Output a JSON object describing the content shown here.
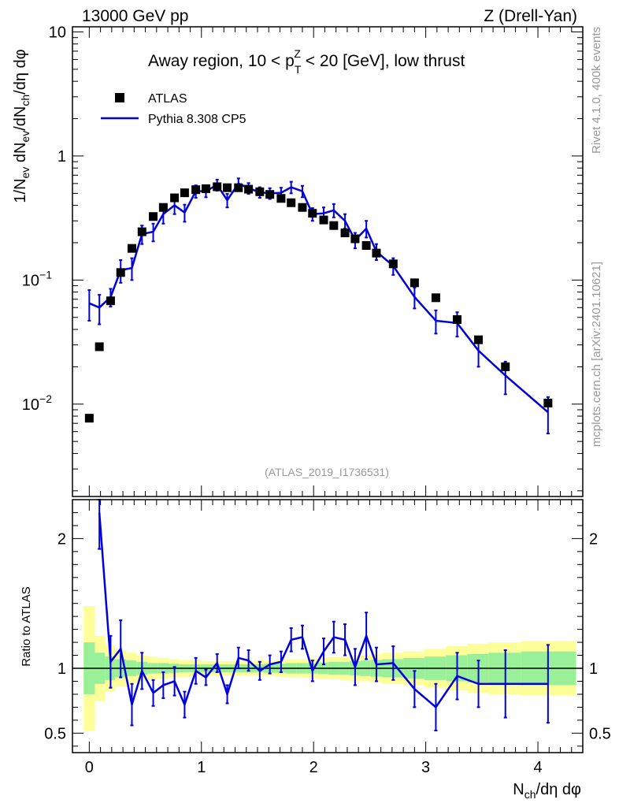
{
  "header": {
    "left": "13000 GeV pp",
    "right": "Z (Drell-Yan)"
  },
  "side_text": {
    "top": "Rivet 4.1.0,  400k events",
    "bottom": "mcplots.cern.ch [arXiv:2401.10621]"
  },
  "analysis_id": "(ATLAS_2019_I1736531)",
  "colors": {
    "data": "#000000",
    "mc": "#0000dd",
    "band_inner": "#99f099",
    "band_outer": "#ffff99",
    "frame": "#000000"
  },
  "chart_data": [
    {
      "type": "scatter",
      "panel": "main",
      "title": "Away region, 10 < p_T^Z < 20 [GeV], low thrust",
      "ylabel": "1/N_ev dN_ev/dN_ch/dη dφ",
      "yscale": "log",
      "ylim": [
        0.0018,
        11
      ],
      "xlim": [
        -0.15,
        4.4
      ],
      "yticks": [
        {
          "v": 0.01,
          "t": "10",
          "e": "−2"
        },
        {
          "v": 0.1,
          "t": "10",
          "e": "−1"
        },
        {
          "v": 1,
          "t": "1",
          "e": ""
        },
        {
          "v": 10,
          "t": "10",
          "e": ""
        }
      ],
      "legend": {
        "position": "top-left",
        "entries": [
          "ATLAS",
          "Pythia 8.308 CP5"
        ]
      },
      "series": [
        {
          "name": "ATLAS",
          "x": [
            0.0,
            0.09,
            0.19,
            0.28,
            0.38,
            0.47,
            0.57,
            0.66,
            0.76,
            0.85,
            0.95,
            1.04,
            1.14,
            1.23,
            1.33,
            1.42,
            1.52,
            1.61,
            1.71,
            1.8,
            1.9,
            1.99,
            2.09,
            2.18,
            2.28,
            2.37,
            2.47,
            2.56,
            2.71,
            2.9,
            3.09,
            3.28,
            3.47,
            3.71,
            4.09
          ],
          "y": [
            0.0077,
            0.029,
            0.068,
            0.115,
            0.18,
            0.245,
            0.325,
            0.385,
            0.46,
            0.505,
            0.535,
            0.545,
            0.565,
            0.555,
            0.555,
            0.54,
            0.515,
            0.49,
            0.455,
            0.42,
            0.385,
            0.345,
            0.305,
            0.275,
            0.24,
            0.215,
            0.19,
            0.165,
            0.135,
            0.095,
            0.072,
            0.048,
            0.033,
            0.02,
            0.0102
          ]
        },
        {
          "name": "Pythia 8.308 CP5",
          "x": [
            0.0,
            0.09,
            0.19,
            0.28,
            0.38,
            0.47,
            0.57,
            0.66,
            0.76,
            0.85,
            0.95,
            1.04,
            1.14,
            1.23,
            1.33,
            1.42,
            1.52,
            1.61,
            1.71,
            1.8,
            1.9,
            1.99,
            2.09,
            2.18,
            2.28,
            2.37,
            2.47,
            2.56,
            2.71,
            2.9,
            3.09,
            3.28,
            3.47,
            3.71,
            4.09
          ],
          "y": [
            0.065,
            0.06,
            0.073,
            0.12,
            0.125,
            0.235,
            0.245,
            0.34,
            0.4,
            0.35,
            0.52,
            0.52,
            0.585,
            0.44,
            0.6,
            0.55,
            0.51,
            0.5,
            0.505,
            0.56,
            0.52,
            0.34,
            0.345,
            0.365,
            0.3,
            0.21,
            0.26,
            0.17,
            0.13,
            0.073,
            0.047,
            0.045,
            0.027,
            0.017,
            0.0086
          ],
          "yerr": [
            0.018,
            0.016,
            0.012,
            0.025,
            0.025,
            0.04,
            0.04,
            0.055,
            0.06,
            0.055,
            0.06,
            0.055,
            0.06,
            0.055,
            0.06,
            0.055,
            0.05,
            0.05,
            0.05,
            0.06,
            0.055,
            0.04,
            0.04,
            0.045,
            0.04,
            0.03,
            0.04,
            0.025,
            0.02,
            0.014,
            0.01,
            0.01,
            0.007,
            0.005,
            0.0028
          ]
        }
      ]
    },
    {
      "type": "line",
      "panel": "ratio",
      "ylabel": "Ratio to ATLAS",
      "xlabel": "N_ch/dη dφ",
      "ylim": [
        0.35,
        2.3
      ],
      "xlim": [
        -0.15,
        4.4
      ],
      "yticks": [
        {
          "v": 0.5,
          "t": "0.5"
        },
        {
          "v": 1,
          "t": "1"
        },
        {
          "v": 2,
          "t": "2"
        }
      ],
      "xticks": [
        {
          "v": 0,
          "t": "0"
        },
        {
          "v": 1,
          "t": "1"
        },
        {
          "v": 2,
          "t": "2"
        },
        {
          "v": 3,
          "t": "3"
        },
        {
          "v": 4,
          "t": "4"
        }
      ],
      "ratio": {
        "x": [
          0.09,
          0.19,
          0.28,
          0.38,
          0.47,
          0.57,
          0.66,
          0.76,
          0.85,
          0.95,
          1.04,
          1.14,
          1.23,
          1.33,
          1.42,
          1.52,
          1.61,
          1.71,
          1.8,
          1.9,
          1.99,
          2.09,
          2.18,
          2.28,
          2.37,
          2.47,
          2.56,
          2.71,
          2.9,
          3.09,
          3.28,
          3.47,
          3.71,
          4.09
        ],
        "y": [
          2.2,
          1.05,
          1.15,
          0.72,
          0.98,
          0.81,
          0.87,
          0.9,
          0.72,
          0.98,
          0.93,
          1.04,
          0.8,
          1.08,
          1.06,
          0.98,
          1.03,
          1.05,
          1.22,
          1.24,
          0.98,
          1.13,
          1.24,
          1.22,
          1.01,
          1.25,
          1.03,
          1.04,
          0.84,
          0.7,
          0.94,
          0.88,
          0.88,
          0.88
        ],
        "yerr": [
          0.28,
          0.2,
          0.22,
          0.16,
          0.14,
          0.1,
          0.1,
          0.11,
          0.1,
          0.1,
          0.06,
          0.07,
          0.07,
          0.08,
          0.08,
          0.07,
          0.07,
          0.08,
          0.09,
          0.09,
          0.08,
          0.1,
          0.12,
          0.12,
          0.14,
          0.18,
          0.13,
          0.13,
          0.14,
          0.18,
          0.18,
          0.18,
          0.26,
          0.3
        ]
      },
      "band_edges": [
        -0.05,
        0.05,
        0.14,
        0.23,
        0.33,
        0.42,
        0.52,
        0.61,
        0.71,
        0.8,
        0.9,
        0.99,
        1.09,
        1.18,
        1.28,
        1.37,
        1.47,
        1.56,
        1.66,
        1.75,
        1.85,
        1.94,
        2.04,
        2.13,
        2.23,
        2.32,
        2.42,
        2.51,
        2.61,
        2.8,
        2.99,
        3.18,
        3.37,
        3.56,
        3.85,
        4.34
      ],
      "band_inner": [
        0.2,
        0.12,
        0.09,
        0.07,
        0.06,
        0.05,
        0.04,
        0.04,
        0.035,
        0.03,
        0.03,
        0.03,
        0.03,
        0.03,
        0.03,
        0.03,
        0.03,
        0.035,
        0.035,
        0.04,
        0.04,
        0.04,
        0.045,
        0.05,
        0.05,
        0.055,
        0.06,
        0.065,
        0.07,
        0.08,
        0.09,
        0.1,
        0.11,
        0.12,
        0.13
      ],
      "band_outer": [
        0.48,
        0.25,
        0.18,
        0.14,
        0.12,
        0.1,
        0.09,
        0.08,
        0.07,
        0.065,
        0.06,
        0.055,
        0.055,
        0.055,
        0.055,
        0.055,
        0.06,
        0.06,
        0.065,
        0.07,
        0.07,
        0.075,
        0.08,
        0.085,
        0.09,
        0.1,
        0.1,
        0.11,
        0.12,
        0.13,
        0.15,
        0.17,
        0.19,
        0.2,
        0.21
      ]
    }
  ]
}
